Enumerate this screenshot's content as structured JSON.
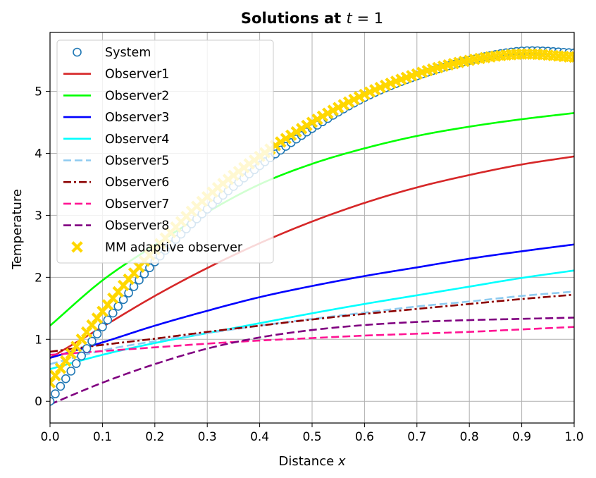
{
  "chart_data": {
    "type": "line",
    "title": "Solutions at t = 1",
    "title_parts": {
      "bold": "Solutions at ",
      "math": "t",
      "rest": " = 1"
    },
    "xlabel_parts": {
      "text": "Distance ",
      "math": "x"
    },
    "xlabel": "Distance x",
    "ylabel": "Temperature",
    "xlim": [
      0.0,
      1.0
    ],
    "ylim": [
      -0.35,
      5.95
    ],
    "xticks": [
      "0.0",
      "0.1",
      "0.2",
      "0.3",
      "0.4",
      "0.5",
      "0.6",
      "0.7",
      "0.8",
      "0.9",
      "1.0"
    ],
    "yticks": [
      "0",
      "1",
      "2",
      "3",
      "4",
      "5"
    ],
    "grid": true,
    "legend_position": "upper-left",
    "x": [
      0.0,
      0.1,
      0.2,
      0.3,
      0.4,
      0.5,
      0.6,
      0.7,
      0.8,
      0.9,
      1.0
    ],
    "series": [
      {
        "name": "System",
        "style": "circle-marker",
        "color": "#1f77b4",
        "values": [
          0.0,
          1.2,
          2.25,
          3.1,
          3.8,
          4.4,
          4.9,
          5.25,
          5.5,
          5.65,
          5.62
        ]
      },
      {
        "name": "Observer1",
        "style": "solid",
        "color": "#d62728",
        "values": [
          0.7,
          1.2,
          1.7,
          2.15,
          2.55,
          2.9,
          3.2,
          3.45,
          3.65,
          3.82,
          3.95
        ]
      },
      {
        "name": "Observer2",
        "style": "solid",
        "color": "#00ff00",
        "values": [
          1.22,
          1.95,
          2.52,
          3.05,
          3.5,
          3.83,
          4.08,
          4.28,
          4.43,
          4.55,
          4.65
        ]
      },
      {
        "name": "Observer3",
        "style": "solid",
        "color": "#0000ff",
        "values": [
          0.7,
          0.95,
          1.22,
          1.46,
          1.68,
          1.86,
          2.02,
          2.16,
          2.3,
          2.42,
          2.53
        ]
      },
      {
        "name": "Observer4",
        "style": "solid",
        "color": "#00ffff",
        "values": [
          0.52,
          0.75,
          0.94,
          1.1,
          1.26,
          1.42,
          1.57,
          1.71,
          1.85,
          1.99,
          2.11
        ]
      },
      {
        "name": "Observer5",
        "style": "dashed",
        "color": "#8ecbf0",
        "values": [
          0.6,
          0.82,
          0.97,
          1.1,
          1.22,
          1.33,
          1.43,
          1.53,
          1.61,
          1.7,
          1.77
        ]
      },
      {
        "name": "Observer6",
        "style": "dashdot",
        "color": "#8b0000",
        "values": [
          0.8,
          0.91,
          1.01,
          1.12,
          1.22,
          1.32,
          1.41,
          1.49,
          1.57,
          1.65,
          1.72
        ]
      },
      {
        "name": "Observer7",
        "style": "dashed",
        "color": "#ff1493",
        "values": [
          0.75,
          0.81,
          0.87,
          0.93,
          0.98,
          1.02,
          1.06,
          1.09,
          1.12,
          1.16,
          1.2
        ]
      },
      {
        "name": "Observer8",
        "style": "dashed",
        "color": "#800080",
        "values": [
          -0.05,
          0.3,
          0.6,
          0.85,
          1.03,
          1.15,
          1.23,
          1.28,
          1.31,
          1.33,
          1.35
        ]
      },
      {
        "name": "MM adaptive observer",
        "style": "x-marker",
        "color": "#ffd700",
        "values": [
          0.3,
          1.45,
          2.45,
          3.3,
          3.95,
          4.5,
          4.95,
          5.28,
          5.5,
          5.6,
          5.55
        ]
      }
    ]
  }
}
